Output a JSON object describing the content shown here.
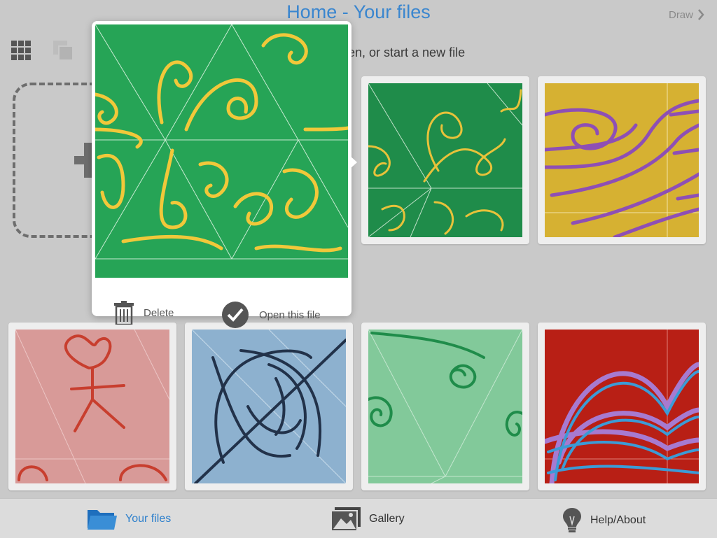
{
  "header": {
    "title": "Home - Your files",
    "draw_label": "Draw"
  },
  "subtitle": "en, or start a new file",
  "popup": {
    "delete_label": "Delete",
    "open_label": "Open this file"
  },
  "tabs": [
    {
      "label": "Your files",
      "icon": "folder-icon",
      "active": true
    },
    {
      "label": "Gallery",
      "icon": "gallery-icon",
      "active": false
    },
    {
      "label": "Help/About",
      "icon": "lightbulb-icon",
      "active": false
    }
  ],
  "colors": {
    "accent": "#3a86cf",
    "background": "#c9c9c9",
    "thumbnails": [
      "#1f8c4a",
      "#d6b132",
      "#d89a98",
      "#8db1cf",
      "#82c99a",
      "#b81f15"
    ]
  }
}
